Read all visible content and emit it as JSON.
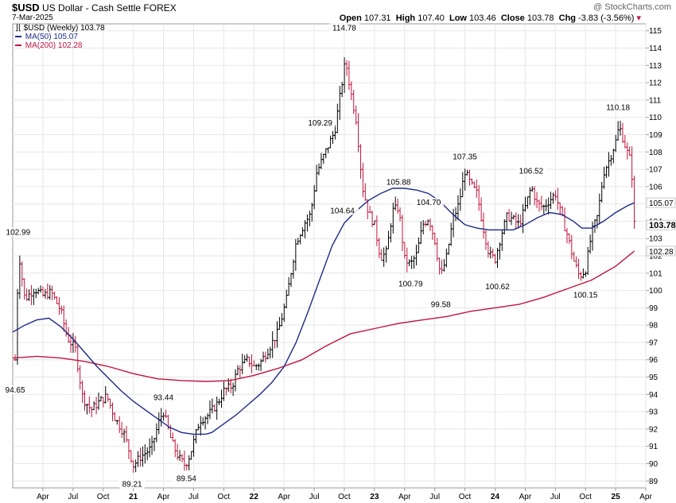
{
  "header": {
    "symbol": "$USD",
    "name": "US Dollar - Cash Settle",
    "exchange": "FOREX",
    "date": "7-Mar-2025",
    "open_label": "Open",
    "open": "107.31",
    "high_label": "High",
    "high": "107.40",
    "low_label": "Low",
    "low": "103.46",
    "close_label": "Close",
    "close": "103.78",
    "chg_label": "Chg",
    "chg": "-3.83 (-3.56%)",
    "watermark": "@ StockCharts.com"
  },
  "legend": {
    "price": "$USD (Weekly) 103.78",
    "ma50": "MA(50) 105.07",
    "ma200": "MA(200) 102.28"
  },
  "colors": {
    "ma50": "#1f2a8a",
    "ma200": "#c0143c",
    "up": "#000000",
    "down": "#c0143c"
  },
  "chart_data": {
    "type": "ohlc",
    "period": "weekly",
    "ylim": [
      88.6,
      115.4
    ],
    "y_ticks": [
      89,
      90,
      91,
      92,
      93,
      94,
      95,
      96,
      97,
      98,
      99,
      100,
      101,
      102,
      103,
      104,
      105,
      106,
      107,
      108,
      109,
      110,
      111,
      112,
      113,
      114,
      115
    ],
    "x_ticks": [
      {
        "label": "Apr",
        "t": 2020.25
      },
      {
        "label": "Jul",
        "t": 2020.5
      },
      {
        "label": "Oct",
        "t": 2020.75
      },
      {
        "label": "21",
        "t": 2021.0
      },
      {
        "label": "Apr",
        "t": 2021.25
      },
      {
        "label": "Jul",
        "t": 2021.5
      },
      {
        "label": "Oct",
        "t": 2021.75
      },
      {
        "label": "22",
        "t": 2022.0
      },
      {
        "label": "Apr",
        "t": 2022.25
      },
      {
        "label": "Jul",
        "t": 2022.5
      },
      {
        "label": "Oct",
        "t": 2022.75
      },
      {
        "label": "23",
        "t": 2023.0
      },
      {
        "label": "Apr",
        "t": 2023.25
      },
      {
        "label": "Jul",
        "t": 2023.5
      },
      {
        "label": "Oct",
        "t": 2023.75
      },
      {
        "label": "24",
        "t": 2024.0
      },
      {
        "label": "Apr",
        "t": 2024.25
      },
      {
        "label": "Jul",
        "t": 2024.5
      },
      {
        "label": "Oct",
        "t": 2024.75
      },
      {
        "label": "25",
        "t": 2025.0
      },
      {
        "label": "Apr",
        "t": 2025.25
      }
    ],
    "x_range": [
      2020.0,
      2025.25
    ],
    "close_path": [
      [
        2020.02,
        96.0
      ],
      [
        2020.05,
        102.2
      ],
      [
        2020.1,
        99.5
      ],
      [
        2020.18,
        100.1
      ],
      [
        2020.25,
        99.7
      ],
      [
        2020.32,
        99.9
      ],
      [
        2020.4,
        98.8
      ],
      [
        2020.45,
        97.3
      ],
      [
        2020.52,
        96.6
      ],
      [
        2020.58,
        93.8
      ],
      [
        2020.65,
        93.1
      ],
      [
        2020.72,
        93.6
      ],
      [
        2020.78,
        93.9
      ],
      [
        2020.85,
        92.6
      ],
      [
        2020.92,
        91.8
      ],
      [
        2020.98,
        90.4
      ],
      [
        2021.0,
        89.9
      ],
      [
        2021.06,
        90.4
      ],
      [
        2021.15,
        90.9
      ],
      [
        2021.22,
        92.6
      ],
      [
        2021.25,
        93.0
      ],
      [
        2021.32,
        91.2
      ],
      [
        2021.38,
        90.3
      ],
      [
        2021.43,
        89.9
      ],
      [
        2021.47,
        90.5
      ],
      [
        2021.55,
        92.5
      ],
      [
        2021.62,
        92.8
      ],
      [
        2021.7,
        93.5
      ],
      [
        2021.75,
        94.2
      ],
      [
        2021.82,
        94.5
      ],
      [
        2021.87,
        95.5
      ],
      [
        2021.95,
        96.0
      ],
      [
        2022.0,
        95.6
      ],
      [
        2022.05,
        95.8
      ],
      [
        2022.12,
        96.6
      ],
      [
        2022.2,
        97.6
      ],
      [
        2022.27,
        99.5
      ],
      [
        2022.35,
        102.8
      ],
      [
        2022.42,
        103.9
      ],
      [
        2022.47,
        104.4
      ],
      [
        2022.52,
        106.8
      ],
      [
        2022.6,
        108.1
      ],
      [
        2022.67,
        109.2
      ],
      [
        2022.72,
        111.5
      ],
      [
        2022.76,
        113.3
      ],
      [
        2022.8,
        111.6
      ],
      [
        2022.85,
        109.8
      ],
      [
        2022.9,
        106.0
      ],
      [
        2022.95,
        104.5
      ],
      [
        2023.0,
        103.8
      ],
      [
        2023.05,
        101.9
      ],
      [
        2023.1,
        102.2
      ],
      [
        2023.15,
        104.6
      ],
      [
        2023.2,
        104.8
      ],
      [
        2023.25,
        101.8
      ],
      [
        2023.3,
        101.5
      ],
      [
        2023.35,
        102.1
      ],
      [
        2023.4,
        103.8
      ],
      [
        2023.45,
        104.2
      ],
      [
        2023.5,
        102.9
      ],
      [
        2023.55,
        100.8
      ],
      [
        2023.6,
        102.0
      ],
      [
        2023.65,
        104.1
      ],
      [
        2023.7,
        105.0
      ],
      [
        2023.75,
        106.9
      ],
      [
        2023.8,
        106.1
      ],
      [
        2023.85,
        105.6
      ],
      [
        2023.9,
        103.7
      ],
      [
        2023.95,
        102.1
      ],
      [
        2024.0,
        101.8
      ],
      [
        2024.05,
        103.2
      ],
      [
        2024.1,
        104.3
      ],
      [
        2024.15,
        104.1
      ],
      [
        2024.2,
        103.8
      ],
      [
        2024.25,
        104.8
      ],
      [
        2024.3,
        106.0
      ],
      [
        2024.35,
        105.0
      ],
      [
        2024.4,
        104.8
      ],
      [
        2024.45,
        105.2
      ],
      [
        2024.5,
        105.6
      ],
      [
        2024.55,
        104.3
      ],
      [
        2024.6,
        103.2
      ],
      [
        2024.65,
        101.8
      ],
      [
        2024.7,
        100.8
      ],
      [
        2024.75,
        101.2
      ],
      [
        2024.8,
        103.3
      ],
      [
        2024.85,
        104.3
      ],
      [
        2024.9,
        106.8
      ],
      [
        2024.95,
        107.6
      ],
      [
        2025.0,
        108.6
      ],
      [
        2025.03,
        109.5
      ],
      [
        2025.06,
        108.8
      ],
      [
        2025.1,
        107.9
      ],
      [
        2025.13,
        107.4
      ],
      [
        2025.155,
        103.78
      ]
    ],
    "ma50_path": [
      [
        2020.0,
        97.6
      ],
      [
        2020.1,
        98.0
      ],
      [
        2020.2,
        98.3
      ],
      [
        2020.3,
        98.4
      ],
      [
        2020.4,
        97.9
      ],
      [
        2020.5,
        97.2
      ],
      [
        2020.6,
        96.4
      ],
      [
        2020.7,
        95.6
      ],
      [
        2020.8,
        94.9
      ],
      [
        2020.9,
        94.2
      ],
      [
        2021.0,
        93.6
      ],
      [
        2021.1,
        93.1
      ],
      [
        2021.2,
        92.6
      ],
      [
        2021.3,
        92.1
      ],
      [
        2021.4,
        91.8
      ],
      [
        2021.5,
        91.7
      ],
      [
        2021.6,
        91.7
      ],
      [
        2021.65,
        91.8
      ],
      [
        2021.75,
        92.3
      ],
      [
        2021.85,
        92.8
      ],
      [
        2021.95,
        93.4
      ],
      [
        2022.05,
        94.0
      ],
      [
        2022.15,
        94.7
      ],
      [
        2022.25,
        95.6
      ],
      [
        2022.3,
        96.3
      ],
      [
        2022.35,
        97.0
      ],
      [
        2022.45,
        98.8
      ],
      [
        2022.55,
        100.7
      ],
      [
        2022.65,
        102.6
      ],
      [
        2022.75,
        103.9
      ],
      [
        2022.85,
        104.6
      ],
      [
        2022.95,
        105.2
      ],
      [
        2023.05,
        105.6
      ],
      [
        2023.15,
        105.9
      ],
      [
        2023.25,
        105.9
      ],
      [
        2023.35,
        105.8
      ],
      [
        2023.45,
        105.6
      ],
      [
        2023.55,
        105.1
      ],
      [
        2023.65,
        104.4
      ],
      [
        2023.75,
        103.8
      ],
      [
        2023.85,
        103.6
      ],
      [
        2023.95,
        103.5
      ],
      [
        2024.05,
        103.5
      ],
      [
        2024.15,
        103.5
      ],
      [
        2024.25,
        103.8
      ],
      [
        2024.35,
        104.2
      ],
      [
        2024.45,
        104.5
      ],
      [
        2024.55,
        104.4
      ],
      [
        2024.65,
        104.0
      ],
      [
        2024.72,
        103.6
      ],
      [
        2024.8,
        103.6
      ],
      [
        2024.9,
        104.0
      ],
      [
        2025.0,
        104.5
      ],
      [
        2025.1,
        104.9
      ],
      [
        2025.155,
        105.07
      ]
    ],
    "ma200_path": [
      [
        2020.0,
        96.1
      ],
      [
        2020.2,
        96.2
      ],
      [
        2020.4,
        96.1
      ],
      [
        2020.6,
        95.9
      ],
      [
        2020.8,
        95.6
      ],
      [
        2021.0,
        95.2
      ],
      [
        2021.2,
        94.9
      ],
      [
        2021.4,
        94.8
      ],
      [
        2021.6,
        94.75
      ],
      [
        2021.8,
        94.8
      ],
      [
        2022.0,
        95.1
      ],
      [
        2022.2,
        95.5
      ],
      [
        2022.4,
        96.0
      ],
      [
        2022.6,
        96.8
      ],
      [
        2022.8,
        97.5
      ],
      [
        2023.0,
        97.8
      ],
      [
        2023.2,
        98.1
      ],
      [
        2023.4,
        98.3
      ],
      [
        2023.6,
        98.5
      ],
      [
        2023.8,
        98.8
      ],
      [
        2024.0,
        99.0
      ],
      [
        2024.2,
        99.2
      ],
      [
        2024.4,
        99.6
      ],
      [
        2024.6,
        100.1
      ],
      [
        2024.8,
        100.6
      ],
      [
        2025.0,
        101.4
      ],
      [
        2025.155,
        102.28
      ]
    ],
    "annotations": [
      {
        "label": "102.99",
        "t": 2020.045,
        "y": 102.99,
        "pos": "above"
      },
      {
        "label": "94.65",
        "t": 2020.02,
        "y": 94.65,
        "pos": "below"
      },
      {
        "label": "89.21",
        "t": 2020.99,
        "y": 89.21,
        "pos": "below"
      },
      {
        "label": "93.44",
        "t": 2021.25,
        "y": 93.44,
        "pos": "above"
      },
      {
        "label": "89.54",
        "t": 2021.44,
        "y": 89.54,
        "pos": "below"
      },
      {
        "label": "109.29",
        "t": 2022.55,
        "y": 109.29,
        "pos": "above"
      },
      {
        "label": "104.64",
        "t": 2022.62,
        "y": 104.64,
        "pos": "right"
      },
      {
        "label": "114.78",
        "t": 2022.75,
        "y": 114.78,
        "pos": "above"
      },
      {
        "label": "105.88",
        "t": 2023.2,
        "y": 105.88,
        "pos": "above"
      },
      {
        "label": "100.79",
        "t": 2023.3,
        "y": 100.79,
        "pos": "below"
      },
      {
        "label": "104.70",
        "t": 2023.45,
        "y": 104.7,
        "pos": "above"
      },
      {
        "label": "99.58",
        "t": 2023.55,
        "y": 99.58,
        "pos": "below"
      },
      {
        "label": "107.35",
        "t": 2023.75,
        "y": 107.35,
        "pos": "above"
      },
      {
        "label": "100.62",
        "t": 2024.02,
        "y": 100.62,
        "pos": "below"
      },
      {
        "label": "106.52",
        "t": 2024.3,
        "y": 106.52,
        "pos": "above"
      },
      {
        "label": "100.15",
        "t": 2024.75,
        "y": 100.15,
        "pos": "below"
      },
      {
        "label": "110.18",
        "t": 2025.02,
        "y": 110.18,
        "pos": "above"
      }
    ],
    "right_labels": [
      {
        "label": "105.07",
        "y": 105.07,
        "series": "ma50"
      },
      {
        "label": "103.78",
        "y": 103.78,
        "series": "price"
      },
      {
        "label": "102.28",
        "y": 102.28,
        "series": "ma200"
      }
    ]
  }
}
